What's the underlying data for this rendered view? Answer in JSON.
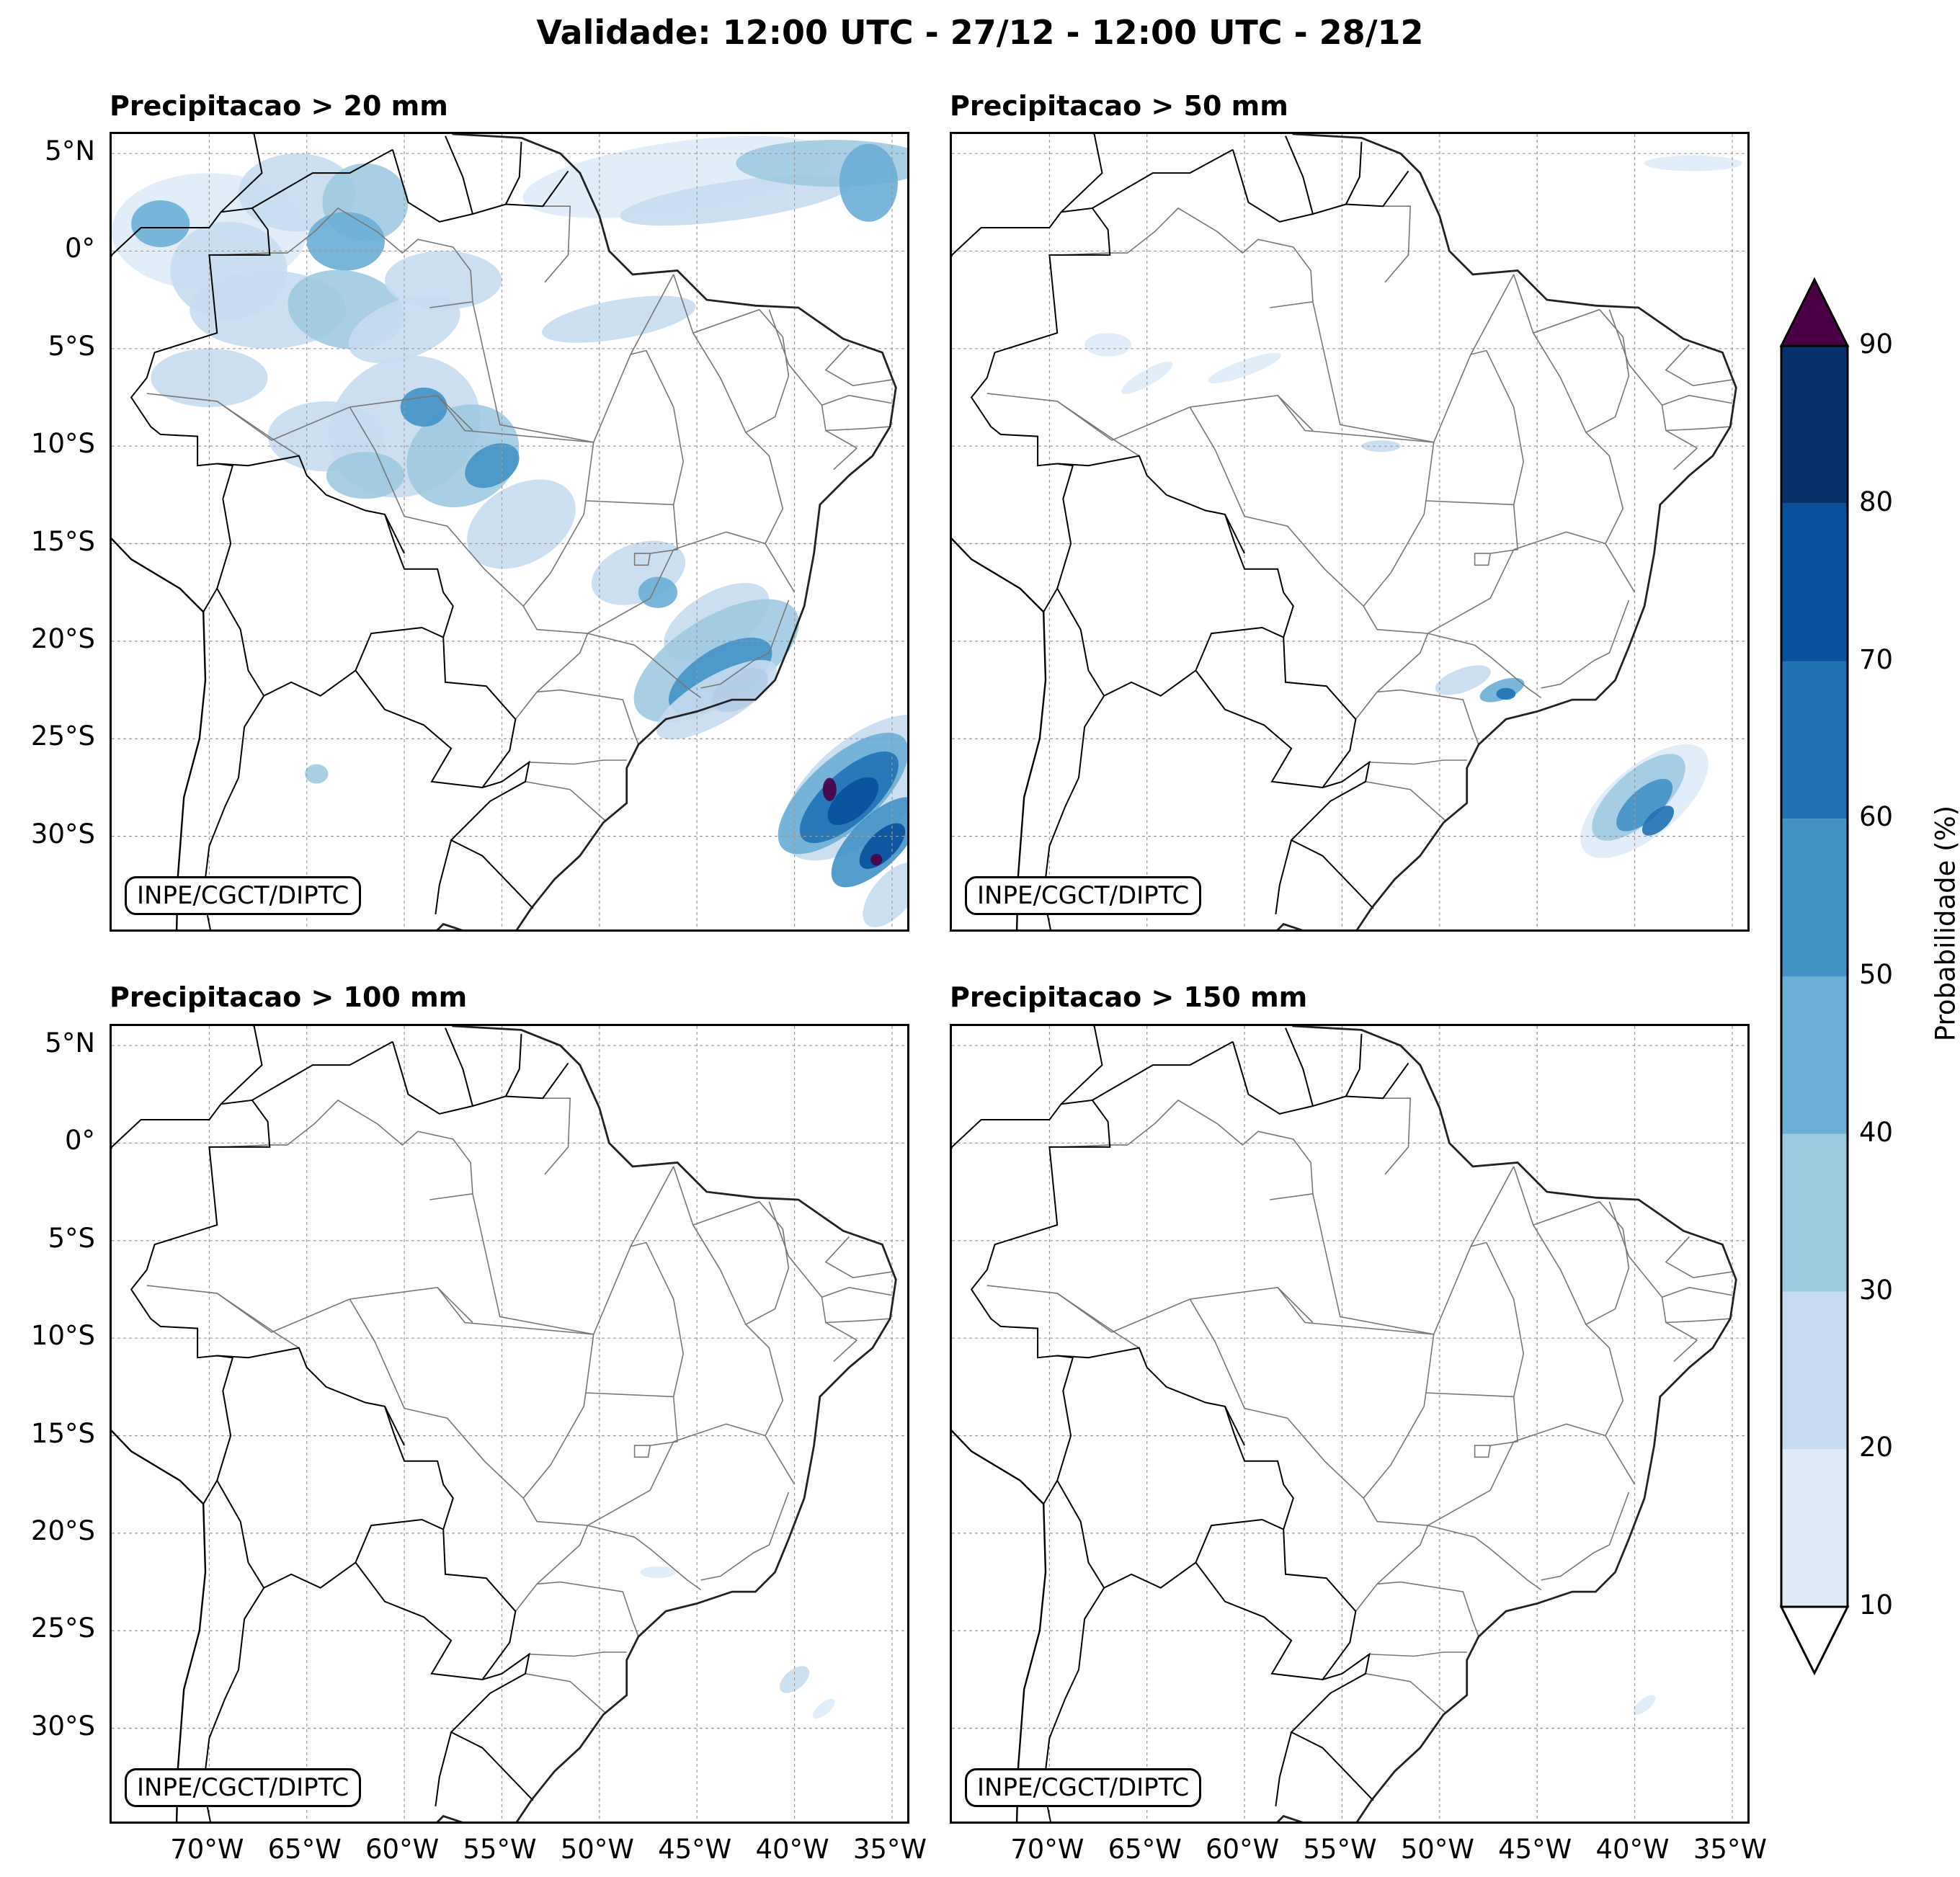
{
  "title": "Validade: 12:00 UTC - 27/12 - 12:00 UTC - 28/12",
  "watermark": "INPE/CGCT/DIPTC",
  "panels": [
    {
      "id": "p20",
      "title": "Precipitacao > 20 mm"
    },
    {
      "id": "p50",
      "title": "Precipitacao > 50 mm"
    },
    {
      "id": "p100",
      "title": "Precipitacao > 100 mm"
    },
    {
      "id": "p150",
      "title": "Precipitacao > 150 mm"
    }
  ],
  "lat_ticks": [
    "5°N",
    "0°",
    "5°S",
    "10°S",
    "15°S",
    "20°S",
    "25°S",
    "30°S"
  ],
  "lon_ticks": [
    "70°W",
    "65°W",
    "60°W",
    "55°W",
    "50°W",
    "45°W",
    "40°W",
    "35°W"
  ],
  "map_extent": {
    "lon": [
      -75,
      -34
    ],
    "lat": [
      -35,
      6
    ]
  },
  "colorbar": {
    "label": "Probabilidade (%)",
    "ticks": [
      "10",
      "20",
      "30",
      "40",
      "50",
      "60",
      "70",
      "80",
      "90"
    ],
    "colors": [
      "#deebf7",
      "#c6dbef",
      "#9ecae1",
      "#6baed6",
      "#4292c6",
      "#2171b5",
      "#08519c",
      "#08306b"
    ],
    "over_color": "#4a0045",
    "under_color": "#ffffff"
  },
  "colors": {
    "border": "#000000",
    "state_line": "#777777",
    "grid": "#999999"
  }
}
